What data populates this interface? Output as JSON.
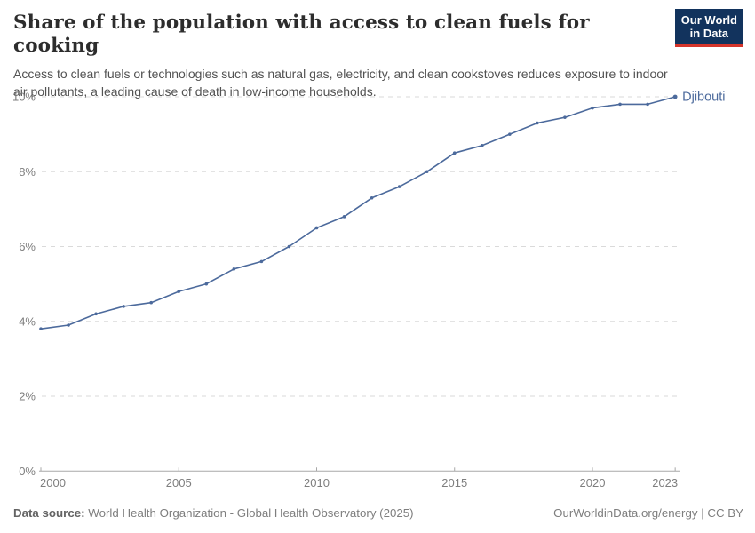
{
  "header": {
    "title": "Share of the population with access to clean fuels for cooking",
    "subtitle": "Access to clean fuels or technologies such as natural gas, electricity, and clean cookstoves reduces exposure to indoor air pollutants, a leading cause of death in low-income households.",
    "logo": {
      "line1": "Our World",
      "line2": "in Data",
      "bg_color": "#12335d",
      "accent_color": "#d5352b"
    }
  },
  "footer": {
    "source_label": "Data source:",
    "source_text": "World Health Organization - Global Health Observatory (2025)",
    "credit": "OurWorldinData.org/energy | CC BY"
  },
  "chart_data": {
    "type": "line",
    "title": "Share of the population with access to clean fuels for cooking",
    "xlabel": "",
    "ylabel": "",
    "x": [
      2000,
      2001,
      2002,
      2003,
      2004,
      2005,
      2006,
      2007,
      2008,
      2009,
      2010,
      2011,
      2012,
      2013,
      2014,
      2015,
      2016,
      2017,
      2018,
      2019,
      2020,
      2021,
      2022,
      2023
    ],
    "series": [
      {
        "name": "Djibouti",
        "color": "#4c6a9c",
        "values": [
          3.8,
          3.9,
          4.2,
          4.4,
          4.5,
          4.8,
          5.0,
          5.4,
          5.6,
          6.0,
          6.5,
          6.8,
          7.3,
          7.6,
          8.0,
          8.5,
          8.7,
          9.0,
          9.3,
          9.45,
          9.7,
          9.8,
          9.8,
          10.0
        ]
      }
    ],
    "xticks": [
      2000,
      2005,
      2010,
      2015,
      2020,
      2023
    ],
    "yticks": [
      {
        "value": 0,
        "label": "0%"
      },
      {
        "value": 2,
        "label": "2%"
      },
      {
        "value": 4,
        "label": "4%"
      },
      {
        "value": 6,
        "label": "6%"
      },
      {
        "value": 8,
        "label": "8%"
      },
      {
        "value": 10,
        "label": "10%"
      }
    ],
    "xlim": [
      2000,
      2023
    ],
    "ylim": [
      0,
      10
    ],
    "grid": "horizontal-dashed",
    "legend_position": "end-of-line-label",
    "colors": {
      "gridline": "#dadada",
      "axis": "#a8a8a8",
      "tick_text": "#7e7e7e"
    }
  }
}
